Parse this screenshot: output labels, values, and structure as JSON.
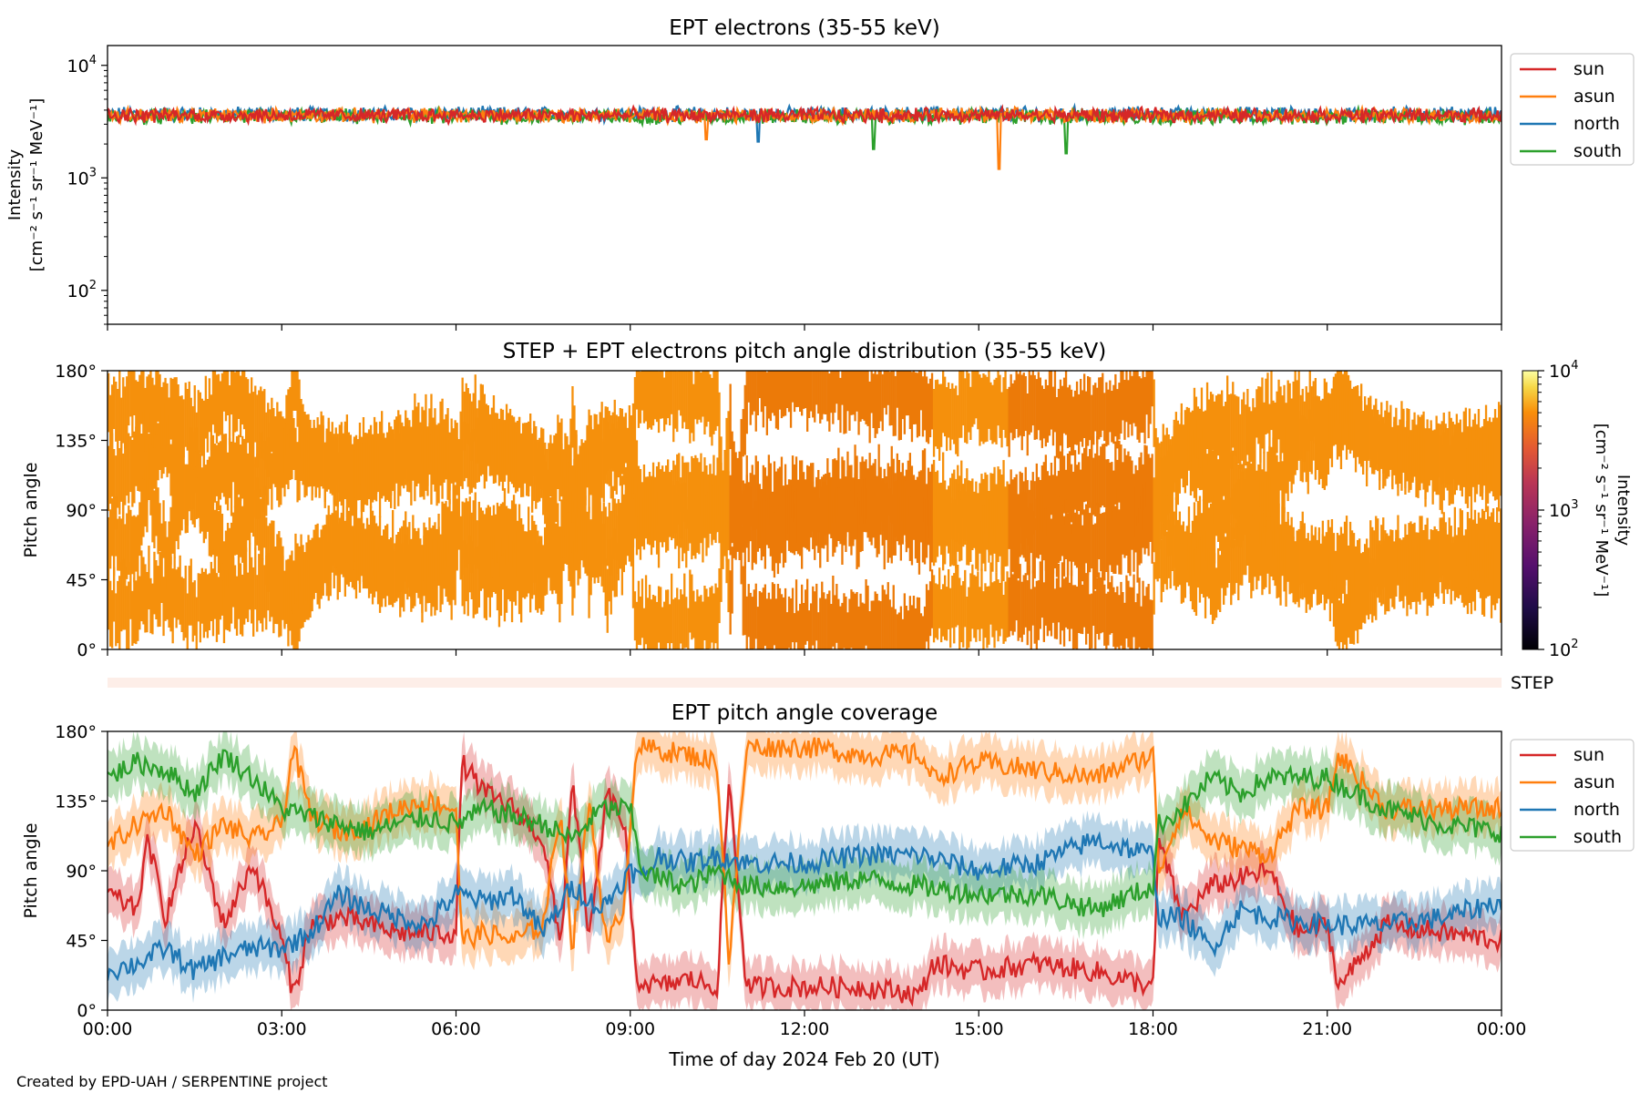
{
  "figure": {
    "footer": "Created by EPD-UAH / SERPENTINE project",
    "xlabel": "Time of day 2024 Feb 20 (UT)"
  },
  "chart_data": [
    {
      "type": "line",
      "title": "EPT electrons (35-55 keV)",
      "ylabel_line1": "Intensity",
      "ylabel_line2": "[cm⁻² s⁻¹ sr⁻¹ MeV⁻¹]",
      "yscale": "log",
      "ylim": [
        50,
        15000
      ],
      "yticks": [
        {
          "value": 100,
          "base": "10",
          "exp": "2"
        },
        {
          "value": 1000,
          "base": "10",
          "exp": "3"
        },
        {
          "value": 10000,
          "base": "10",
          "exp": "4"
        }
      ],
      "xlim": [
        0,
        24
      ],
      "x_unit": "hours",
      "legend_position": "top-right outside",
      "series": [
        {
          "name": "sun",
          "color": "#d62728",
          "mean": 3600,
          "noise": 0.12,
          "dips": []
        },
        {
          "name": "asun",
          "color": "#ff7f0e",
          "mean": 3600,
          "noise": 0.12,
          "dips": [
            {
              "x": 15.35,
              "y": 1200
            },
            {
              "x": 10.3,
              "y": 2200
            }
          ]
        },
        {
          "name": "north",
          "color": "#1f77b4",
          "mean": 3700,
          "noise": 0.12,
          "dips": [
            {
              "x": 11.2,
              "y": 2100
            }
          ]
        },
        {
          "name": "south",
          "color": "#2ca02c",
          "mean": 3500,
          "noise": 0.13,
          "dips": [
            {
              "x": 13.2,
              "y": 1800
            },
            {
              "x": 16.5,
              "y": 1650
            }
          ]
        }
      ]
    },
    {
      "type": "heatmap",
      "title": "STEP + EPT electrons pitch angle distribution (35-55 keV)",
      "ylabel": "Pitch angle",
      "ylim": [
        0,
        180
      ],
      "yticks": [
        "0°",
        "45°",
        "90°",
        "135°",
        "180°"
      ],
      "ytick_values": [
        0,
        45,
        90,
        135,
        180
      ],
      "xlim": [
        0,
        24
      ],
      "colorbar": {
        "label_line1": "Intensity",
        "label_line2": "[cm⁻² s⁻¹ sr⁻¹ MeV⁻¹]",
        "scale": "log",
        "range": [
          100,
          10000
        ],
        "ticks": [
          {
            "value": 100,
            "base": "10",
            "exp": "2"
          },
          {
            "value": 1000,
            "base": "10",
            "exp": "3"
          },
          {
            "value": 10000,
            "base": "10",
            "exp": "4"
          }
        ],
        "colormap": "inferno"
      },
      "fill_color": "#f5900c",
      "dark_fill_color": "#ec7a08"
    },
    {
      "type": "band",
      "label": "STEP",
      "color": "#fdeee8"
    },
    {
      "type": "line",
      "title": "EPT pitch angle coverage",
      "ylabel": "Pitch angle",
      "ylim": [
        0,
        180
      ],
      "yticks": [
        "0°",
        "45°",
        "90°",
        "135°",
        "180°"
      ],
      "ytick_values": [
        0,
        45,
        90,
        135,
        180
      ],
      "xlim": [
        0,
        24
      ],
      "xticks": [
        "00:00",
        "03:00",
        "06:00",
        "09:00",
        "12:00",
        "15:00",
        "18:00",
        "21:00",
        "00:00"
      ],
      "xtick_values": [
        0,
        3,
        6,
        9,
        12,
        15,
        18,
        21,
        24
      ],
      "legend_position": "top-right outside",
      "band_halfwidth_deg": 15,
      "series": [
        {
          "name": "sun",
          "color": "#d62728",
          "x": [
            0,
            0.5,
            0.7,
            1.0,
            1.5,
            2.0,
            2.5,
            3.0,
            3.2,
            3.5,
            4.0,
            4.5,
            5.0,
            5.5,
            6.0,
            6.1,
            6.5,
            7.0,
            7.5,
            7.8,
            8.0,
            8.3,
            8.6,
            8.9,
            9.1,
            9.5,
            10.0,
            10.5,
            10.7,
            11.0,
            12.0,
            13.0,
            14.0,
            14.2,
            15.0,
            16.0,
            17.0,
            18.0,
            18.1,
            18.5,
            19.0,
            20.0,
            20.5,
            21.0,
            21.2,
            22.0,
            23.0,
            24.0
          ],
          "y": [
            75,
            65,
            110,
            60,
            120,
            55,
            95,
            45,
            10,
            55,
            60,
            55,
            50,
            50,
            50,
            160,
            140,
            130,
            110,
            40,
            150,
            45,
            140,
            120,
            20,
            15,
            20,
            15,
            150,
            15,
            15,
            15,
            10,
            30,
            25,
            30,
            25,
            15,
            110,
            60,
            80,
            90,
            50,
            55,
            15,
            55,
            50,
            45
          ]
        },
        {
          "name": "asun",
          "color": "#ff7f0e",
          "x": [
            0,
            0.5,
            1.0,
            1.5,
            2.0,
            2.5,
            3.0,
            3.2,
            3.5,
            4.0,
            4.5,
            5.0,
            5.5,
            6.0,
            6.1,
            6.5,
            7.0,
            7.5,
            7.8,
            8.0,
            8.3,
            8.6,
            8.9,
            9.1,
            10.0,
            10.5,
            10.7,
            11.0,
            12.0,
            13.0,
            14.0,
            14.2,
            15.0,
            16.0,
            17.0,
            18.0,
            18.1,
            18.5,
            19.0,
            20.0,
            20.5,
            21.0,
            21.2,
            22.0,
            23.0,
            24.0
          ],
          "y": [
            105,
            120,
            130,
            100,
            120,
            110,
            120,
            170,
            125,
            115,
            120,
            130,
            135,
            130,
            45,
            50,
            45,
            55,
            130,
            40,
            135,
            40,
            70,
            170,
            165,
            160,
            30,
            170,
            170,
            165,
            165,
            150,
            160,
            155,
            150,
            165,
            90,
            130,
            110,
            100,
            130,
            130,
            165,
            130,
            130,
            130
          ]
        },
        {
          "name": "north",
          "color": "#1f77b4",
          "x": [
            0,
            0.5,
            1.0,
            1.5,
            2.0,
            2.5,
            3.0,
            3.5,
            4.0,
            4.5,
            5.0,
            5.5,
            6.0,
            6.5,
            7.0,
            7.5,
            8.0,
            8.5,
            9.0,
            9.2,
            9.5,
            10.0,
            10.5,
            11.0,
            12.0,
            13.0,
            14.0,
            15.0,
            16.0,
            17.0,
            18.0,
            18.1,
            18.5,
            19.0,
            19.5,
            20.0,
            21.0,
            22.0,
            23.0,
            24.0
          ],
          "y": [
            25,
            30,
            40,
            25,
            35,
            40,
            40,
            50,
            75,
            65,
            60,
            55,
            75,
            70,
            75,
            50,
            80,
            65,
            90,
            85,
            100,
            95,
            100,
            95,
            95,
            100,
            100,
            90,
            95,
            110,
            100,
            60,
            60,
            40,
            65,
            60,
            55,
            55,
            60,
            70
          ]
        },
        {
          "name": "south",
          "color": "#2ca02c",
          "x": [
            0,
            0.5,
            1.0,
            1.5,
            2.0,
            2.5,
            3.0,
            3.5,
            4.0,
            4.5,
            5.0,
            5.5,
            6.0,
            6.5,
            7.0,
            7.5,
            8.0,
            8.5,
            9.0,
            9.2,
            9.5,
            10.0,
            10.5,
            11.0,
            12.0,
            13.0,
            14.0,
            15.0,
            16.0,
            17.0,
            18.0,
            18.1,
            18.5,
            19.0,
            19.5,
            20.0,
            21.0,
            22.0,
            23.0,
            24.0
          ],
          "y": [
            150,
            160,
            155,
            140,
            165,
            150,
            130,
            125,
            120,
            115,
            120,
            125,
            120,
            130,
            125,
            120,
            110,
            130,
            130,
            90,
            85,
            80,
            90,
            80,
            80,
            85,
            80,
            75,
            75,
            65,
            80,
            120,
            130,
            150,
            140,
            150,
            150,
            130,
            120,
            115
          ]
        }
      ]
    }
  ]
}
